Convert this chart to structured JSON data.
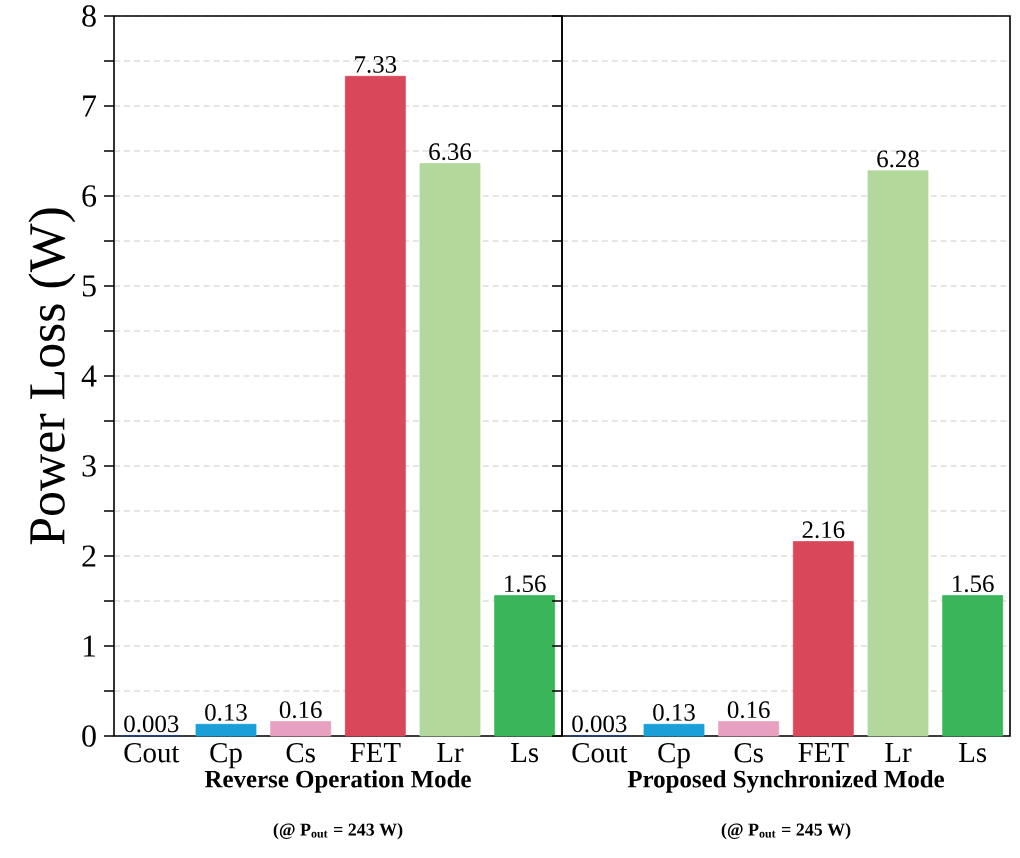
{
  "chart_data": [
    {
      "type": "bar",
      "categories": [
        "Cout",
        "Cp",
        "Cs",
        "FET",
        "Lr",
        "Ls"
      ],
      "values": [
        0.003,
        0.13,
        0.16,
        7.33,
        6.36,
        1.56
      ],
      "colors": [
        "#1f3f8f",
        "#1a9fd9",
        "#e8a0c0",
        "#d9485a",
        "#b3d89c",
        "#3bb55a"
      ],
      "ylabel": "Power Loss (W)",
      "xlabel": "Reverse Operation Mode",
      "annotations": [
        "(@ P$_{out}$ = 243 W)"
      ],
      "ylim": [
        0,
        8
      ],
      "yticks": [
        0,
        {
          "value": 0.5,
          "label": null
        },
        1,
        {
          "value": 1.5,
          "label": null
        },
        2,
        {
          "value": 2.5,
          "label": null
        },
        3,
        {
          "value": 3.5,
          "label": null
        },
        4,
        {
          "value": 4.5,
          "label": null
        },
        5,
        {
          "value": 5.5,
          "label": null
        },
        6,
        {
          "value": 6.5,
          "label": null
        },
        7,
        {
          "value": 7.5,
          "label": null
        },
        8
      ],
      "grid": "y",
      "data_labels": true
    },
    {
      "type": "bar",
      "categories": [
        "Cout",
        "Cp",
        "Cs",
        "FET",
        "Lr",
        "Ls"
      ],
      "values": [
        0.003,
        0.13,
        0.16,
        2.16,
        6.28,
        1.56
      ],
      "colors": [
        "#1f3f8f",
        "#1a9fd9",
        "#e8a0c0",
        "#d9485a",
        "#b3d89c",
        "#3bb55a"
      ],
      "xlabel": "Proposed Synchronized Mode",
      "annotations": [
        "(@ P$_{out}$ = 245 W)"
      ],
      "ylim": [
        0,
        8
      ],
      "yticks": [
        0,
        {
          "value": 0.5,
          "label": null
        },
        1,
        {
          "value": 1.5,
          "label": null
        },
        2,
        {
          "value": 2.5,
          "label": null
        },
        3,
        {
          "value": 3.5,
          "label": null
        },
        4,
        {
          "value": 4.5,
          "label": null
        },
        5,
        {
          "value": 5.5,
          "label": null
        },
        6,
        {
          "value": 6.5,
          "label": null
        },
        7,
        {
          "value": 7.5,
          "label": null
        },
        8
      ],
      "grid": "y",
      "data_labels": true,
      "tick_labels": "x"
    }
  ]
}
